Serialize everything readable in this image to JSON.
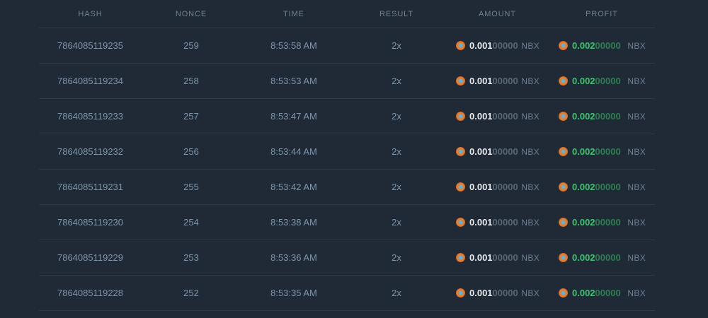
{
  "colors": {
    "bg": "#1f2a36",
    "divider": "#2e3b48",
    "header_text": "#75828e",
    "row_text": "#7f95aa",
    "amount_value": "#e7ebee",
    "amount_faded": "#596774",
    "profit_value": "#3fc571",
    "profit_faded": "#2f7e51",
    "currency_text": "#6d8092",
    "coin_orange": "#e97d2f",
    "coin_center": "#63b1d5"
  },
  "icons": {
    "coin": "nbx-coin-icon"
  },
  "table": {
    "columns": [
      {
        "label": "HASH"
      },
      {
        "label": "NONCE"
      },
      {
        "label": "TIME"
      },
      {
        "label": "RESULT"
      },
      {
        "label": "AMOUNT"
      },
      {
        "label": "PROFIT"
      }
    ],
    "rows": [
      {
        "hash": "7864085119235",
        "nonce": "259",
        "time": "8:53:58 AM",
        "result": "2x",
        "amount_main": "0.001",
        "amount_rest": "00000",
        "amount_currency": "NBX",
        "profit_main": "0.002",
        "profit_rest": "00000",
        "profit_currency": "NBX"
      },
      {
        "hash": "7864085119234",
        "nonce": "258",
        "time": "8:53:53 AM",
        "result": "2x",
        "amount_main": "0.001",
        "amount_rest": "00000",
        "amount_currency": "NBX",
        "profit_main": "0.002",
        "profit_rest": "00000",
        "profit_currency": "NBX"
      },
      {
        "hash": "7864085119233",
        "nonce": "257",
        "time": "8:53:47 AM",
        "result": "2x",
        "amount_main": "0.001",
        "amount_rest": "00000",
        "amount_currency": "NBX",
        "profit_main": "0.002",
        "profit_rest": "00000",
        "profit_currency": "NBX"
      },
      {
        "hash": "7864085119232",
        "nonce": "256",
        "time": "8:53:44 AM",
        "result": "2x",
        "amount_main": "0.001",
        "amount_rest": "00000",
        "amount_currency": "NBX",
        "profit_main": "0.002",
        "profit_rest": "00000",
        "profit_currency": "NBX"
      },
      {
        "hash": "7864085119231",
        "nonce": "255",
        "time": "8:53:42 AM",
        "result": "2x",
        "amount_main": "0.001",
        "amount_rest": "00000",
        "amount_currency": "NBX",
        "profit_main": "0.002",
        "profit_rest": "00000",
        "profit_currency": "NBX"
      },
      {
        "hash": "7864085119230",
        "nonce": "254",
        "time": "8:53:38 AM",
        "result": "2x",
        "amount_main": "0.001",
        "amount_rest": "00000",
        "amount_currency": "NBX",
        "profit_main": "0.002",
        "profit_rest": "00000",
        "profit_currency": "NBX"
      },
      {
        "hash": "7864085119229",
        "nonce": "253",
        "time": "8:53:36 AM",
        "result": "2x",
        "amount_main": "0.001",
        "amount_rest": "00000",
        "amount_currency": "NBX",
        "profit_main": "0.002",
        "profit_rest": "00000",
        "profit_currency": "NBX"
      },
      {
        "hash": "7864085119228",
        "nonce": "252",
        "time": "8:53:35 AM",
        "result": "2x",
        "amount_main": "0.001",
        "amount_rest": "00000",
        "amount_currency": "NBX",
        "profit_main": "0.002",
        "profit_rest": "00000",
        "profit_currency": "NBX"
      }
    ]
  }
}
